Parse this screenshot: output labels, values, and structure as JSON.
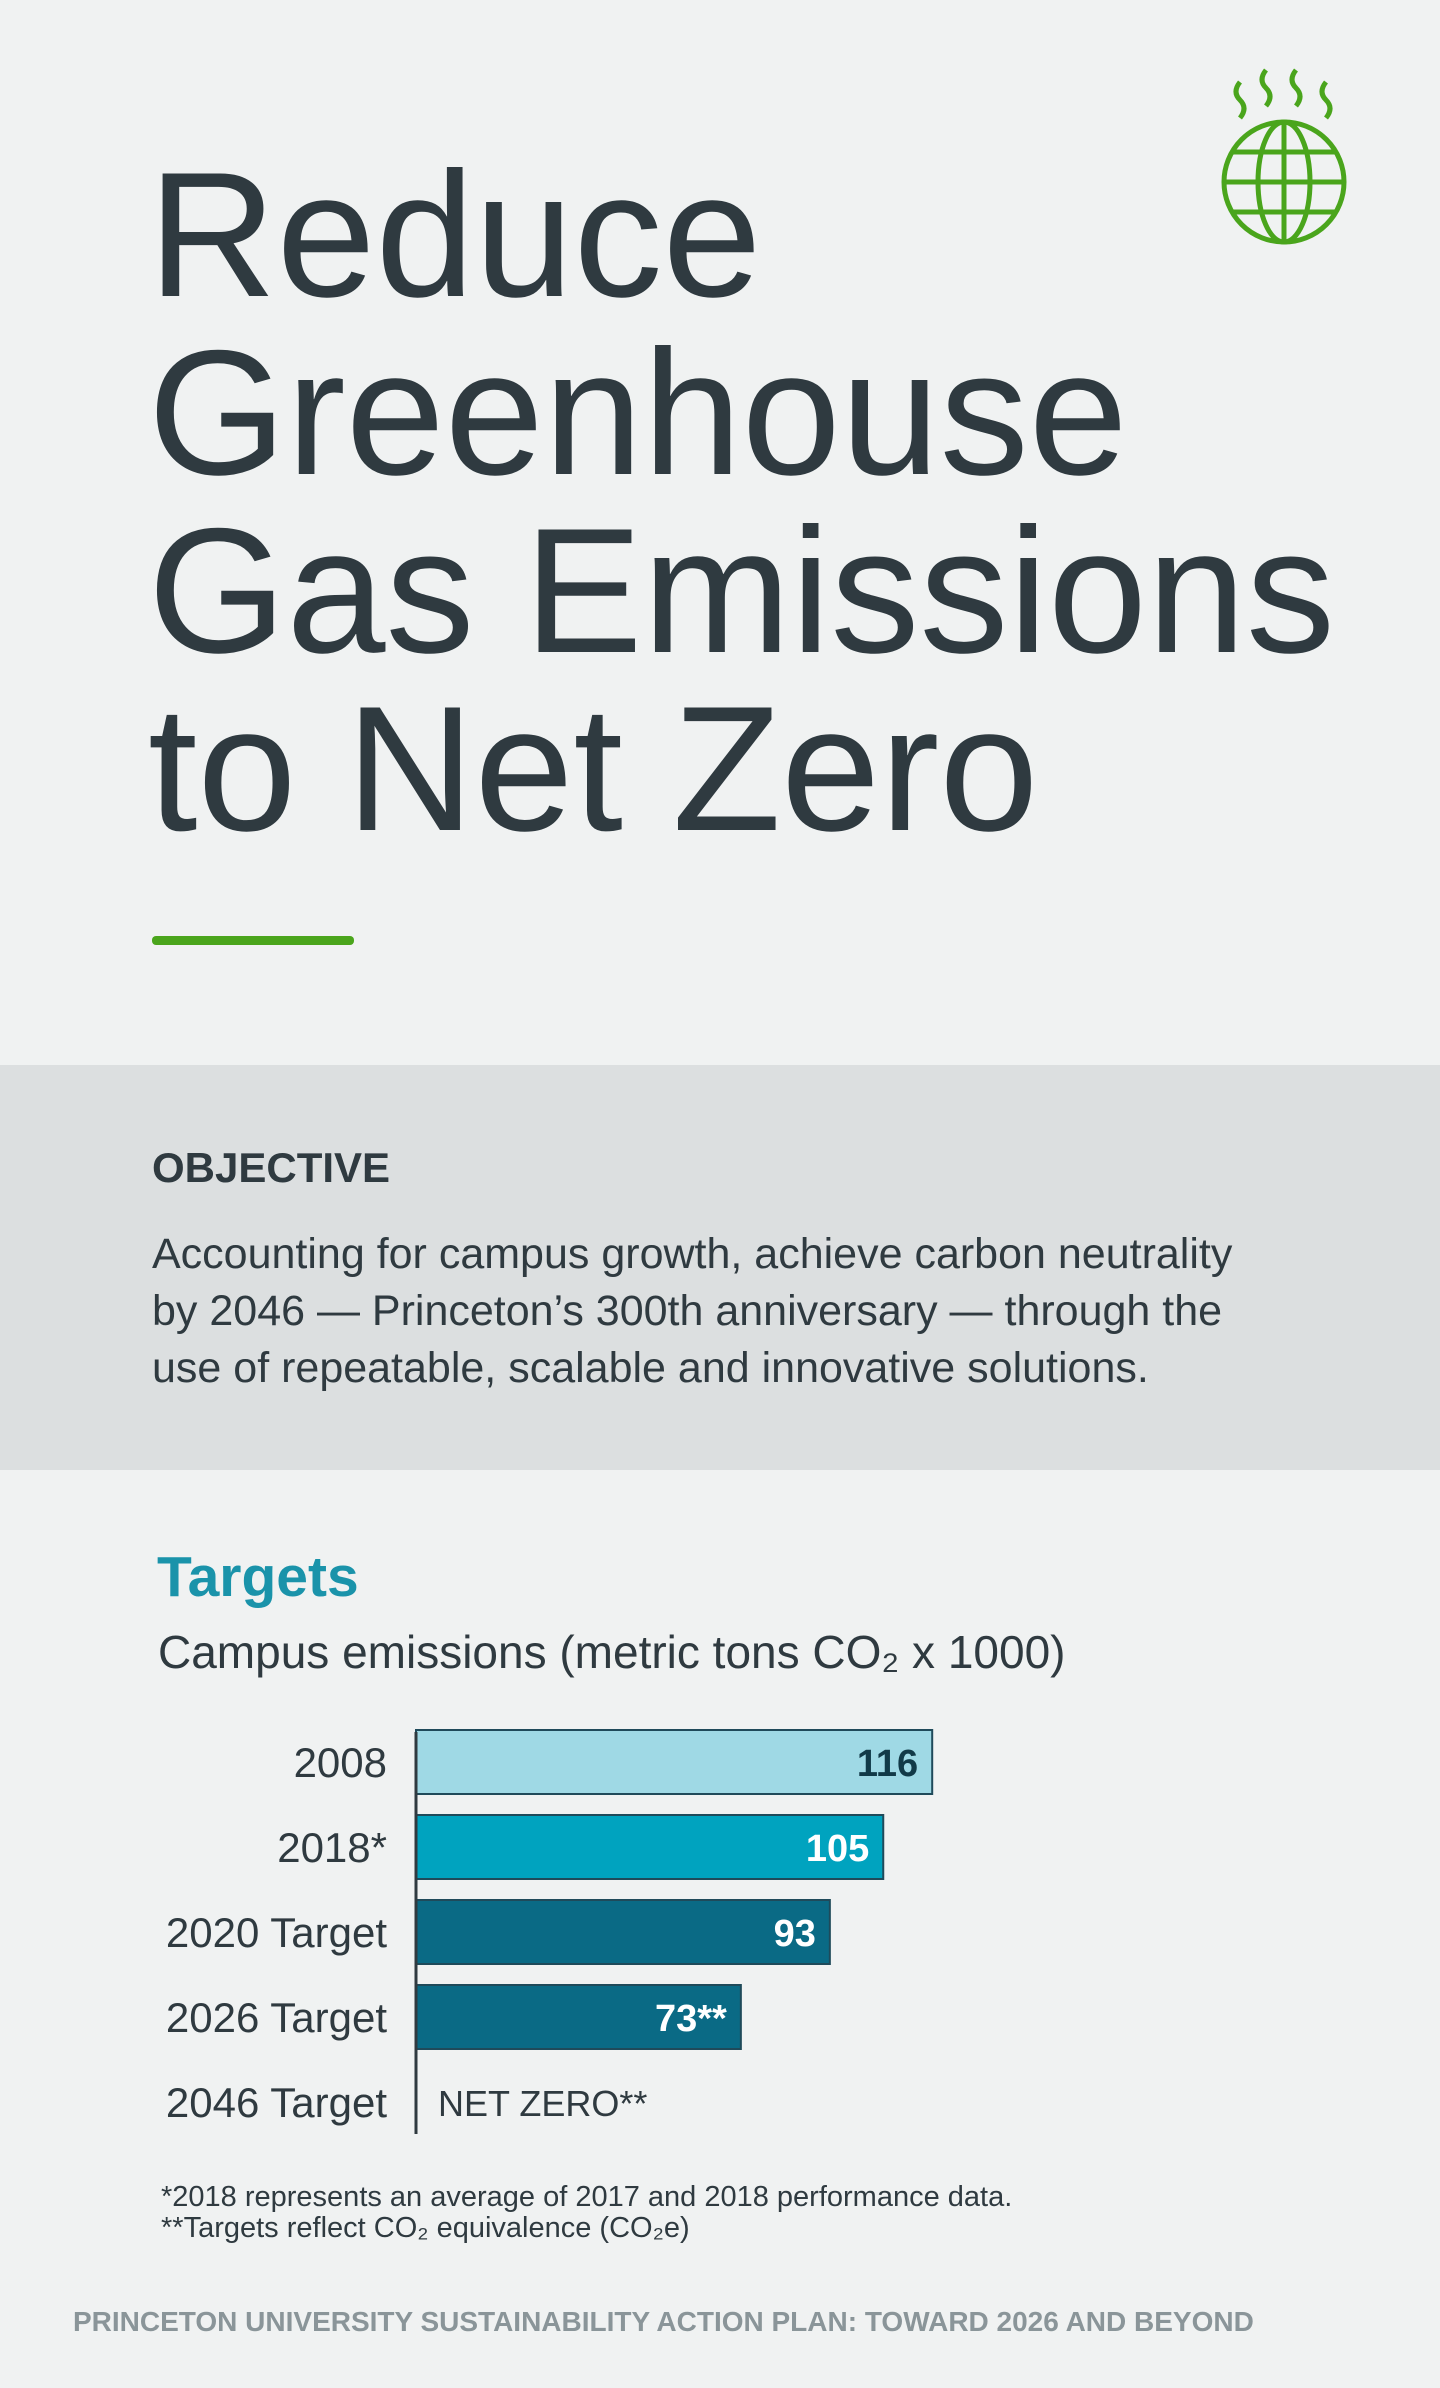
{
  "header": {
    "title_lines": [
      "Reduce",
      "Greenhouse",
      "Gas Emissions",
      "to Net Zero"
    ]
  },
  "objective": {
    "label": "OBJECTIVE",
    "lines": [
      "Accounting for campus growth, achieve carbon neutrality",
      "by 2046 — Princeton’s 300th anniversary — through the",
      "use of repeatable, scalable and innovative solutions."
    ]
  },
  "chart_data": {
    "type": "hbar",
    "title": "Targets",
    "subtitle": "Campus emissions (metric tons CO₂ x 1000)",
    "categories": [
      "2008",
      "2018*",
      "2020 Target",
      "2026 Target",
      "2046 Target"
    ],
    "values": [
      116,
      105,
      93,
      73,
      0
    ],
    "value_labels": [
      "116",
      "105",
      "93",
      "73**",
      "NET ZERO**"
    ],
    "colors": [
      "#9fd9e5",
      "#00a3bf",
      "#0a6a85",
      "#0a6a85",
      "#0a6a85"
    ]
  },
  "footnotes": [
    "*2018 represents an average of 2017 and 2018 performance data.",
    "**Targets reflect CO₂ equivalence (CO₂e)"
  ],
  "footer": "PRINCETON UNIVERSITY SUSTAINABILITY ACTION PLAN: TOWARD 2026 AND BEYOND"
}
